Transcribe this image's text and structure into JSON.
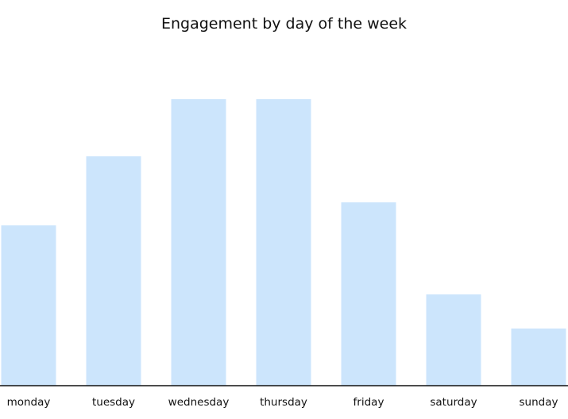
{
  "chart_data": {
    "type": "bar",
    "title": "Engagement by day of the week",
    "xlabel": "",
    "ylabel": "",
    "categories": [
      "monday",
      "tuesday",
      "wednesday",
      "thursday",
      "friday",
      "saturday",
      "sunday"
    ],
    "values": [
      202,
      289,
      361,
      361,
      231,
      115,
      72
    ],
    "ylim": [
      0,
      400
    ],
    "grid": false,
    "legend": "none",
    "colors": {
      "bar": "#cce5fc",
      "axis": "#111111",
      "text": "#111111"
    }
  }
}
